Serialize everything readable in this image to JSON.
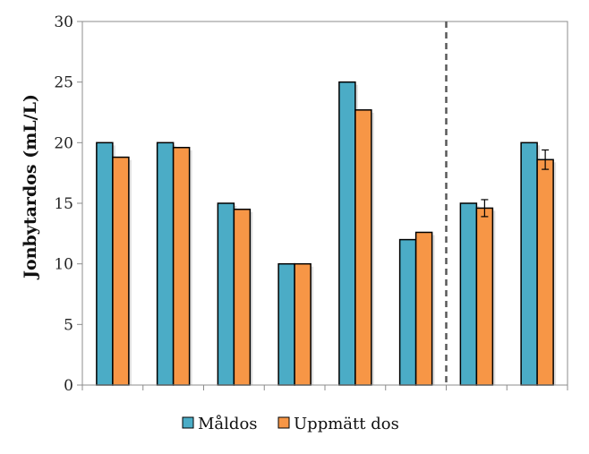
{
  "chart_data": {
    "type": "bar",
    "categories": [
      "",
      "",
      "",
      "",
      "",
      "",
      "",
      ""
    ],
    "series": [
      {
        "name": "Måldos",
        "values": [
          20,
          20,
          15,
          10,
          25,
          12,
          15,
          20
        ],
        "color": "#4BACC6"
      },
      {
        "name": "Uppmätt dos",
        "values": [
          18.8,
          19.6,
          14.5,
          10,
          22.7,
          12.6,
          14.6,
          18.6
        ],
        "color": "#F79646",
        "error": [
          null,
          null,
          null,
          null,
          null,
          null,
          0.7,
          0.8
        ]
      }
    ],
    "xlabel": "",
    "ylabel": "Jonbytardos (mL/L)",
    "ylim": [
      0,
      30
    ],
    "yticks": [
      0,
      5,
      10,
      15,
      20,
      25,
      30
    ],
    "divider_after_index": 5,
    "grid": false,
    "legend": "bottom"
  }
}
